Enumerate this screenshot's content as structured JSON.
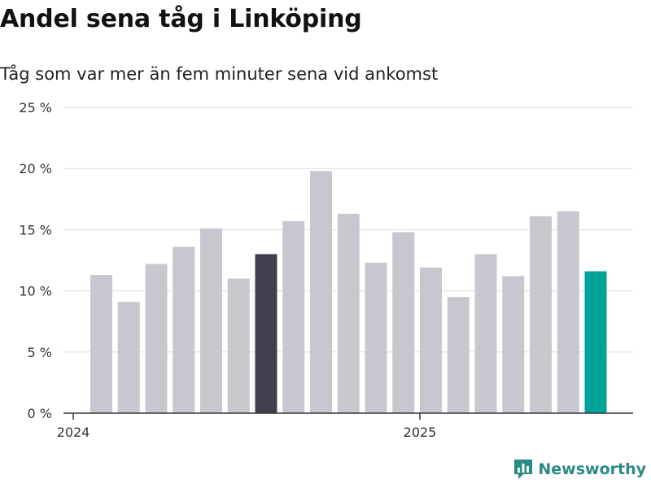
{
  "header": {
    "title": "Andel sena tåg i Linköping",
    "subtitle": "Tåg som var mer än fem minuter sena vid ankomst"
  },
  "branding": {
    "name": "Newsworthy",
    "icon": "newsworthy-logo-icon",
    "color": "#2a8a86"
  },
  "colors": {
    "bar_default": "#c8c7cf",
    "bar_highlight_dark": "#403f4c",
    "bar_highlight_latest": "#00a397",
    "grid": "#dddddd",
    "axis": "#333333"
  },
  "chart_data": {
    "type": "bar",
    "title": "Andel sena tåg i Linköping",
    "subtitle": "Tåg som var mer än fem minuter sena vid ankomst",
    "xlabel": "",
    "ylabel": "",
    "ylim": [
      0,
      25
    ],
    "yticks": [
      0,
      5,
      10,
      15,
      20,
      25
    ],
    "ytick_labels": [
      "0 %",
      "5 %",
      "10 %",
      "15 %",
      "20 %",
      "25 %"
    ],
    "grid": true,
    "x_tick_labels": [
      {
        "label": "2024",
        "category_index": 0
      },
      {
        "label": "2025",
        "category_index": 12
      }
    ],
    "categories": [
      "2024-01",
      "2024-02",
      "2024-03",
      "2024-04",
      "2024-05",
      "2024-06",
      "2024-07",
      "2024-08",
      "2024-09",
      "2024-10",
      "2024-11",
      "2024-12",
      "2025-01",
      "2025-02",
      "2025-03",
      "2025-04",
      "2025-05",
      "2025-06",
      "2025-07"
    ],
    "values": [
      11.3,
      9.1,
      12.2,
      13.6,
      15.1,
      11.0,
      13.0,
      15.7,
      19.8,
      16.3,
      12.3,
      14.8,
      11.9,
      9.5,
      13.0,
      11.2,
      16.1,
      16.5,
      11.6
    ],
    "highlight": {
      "6": "bar_highlight_dark",
      "18": "bar_highlight_latest"
    }
  }
}
